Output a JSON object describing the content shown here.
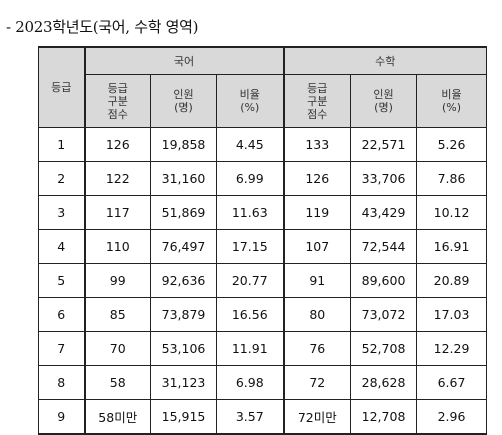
{
  "title": "- 2023학년도(국어, 수학 영역)",
  "headers": {
    "grade": "등급",
    "korean": "국어",
    "math": "수학",
    "cut_score": "등급\n구분\n점수",
    "count": "인원\n(명)",
    "ratio": "비율\n(%)"
  },
  "rows": [
    {
      "grade": "1",
      "k_cut": "126",
      "k_count": "19,858",
      "k_ratio": "4.45",
      "m_cut": "133",
      "m_count": "22,571",
      "m_ratio": "5.26"
    },
    {
      "grade": "2",
      "k_cut": "122",
      "k_count": "31,160",
      "k_ratio": "6.99",
      "m_cut": "126",
      "m_count": "33,706",
      "m_ratio": "7.86"
    },
    {
      "grade": "3",
      "k_cut": "117",
      "k_count": "51,869",
      "k_ratio": "11.63",
      "m_cut": "119",
      "m_count": "43,429",
      "m_ratio": "10.12"
    },
    {
      "grade": "4",
      "k_cut": "110",
      "k_count": "76,497",
      "k_ratio": "17.15",
      "m_cut": "107",
      "m_count": "72,544",
      "m_ratio": "16.91"
    },
    {
      "grade": "5",
      "k_cut": "99",
      "k_count": "92,636",
      "k_ratio": "20.77",
      "m_cut": "91",
      "m_count": "89,600",
      "m_ratio": "20.89"
    },
    {
      "grade": "6",
      "k_cut": "85",
      "k_count": "73,879",
      "k_ratio": "16.56",
      "m_cut": "80",
      "m_count": "73,072",
      "m_ratio": "17.03"
    },
    {
      "grade": "7",
      "k_cut": "70",
      "k_count": "53,106",
      "k_ratio": "11.91",
      "m_cut": "76",
      "m_count": "52,708",
      "m_ratio": "12.29"
    },
    {
      "grade": "8",
      "k_cut": "58",
      "k_count": "31,123",
      "k_ratio": "6.98",
      "m_cut": "72",
      "m_count": "28,628",
      "m_ratio": "6.67"
    },
    {
      "grade": "9",
      "k_cut": "58미만",
      "k_count": "15,915",
      "k_ratio": "3.57",
      "m_cut": "72미만",
      "m_count": "12,708",
      "m_ratio": "2.96"
    }
  ]
}
